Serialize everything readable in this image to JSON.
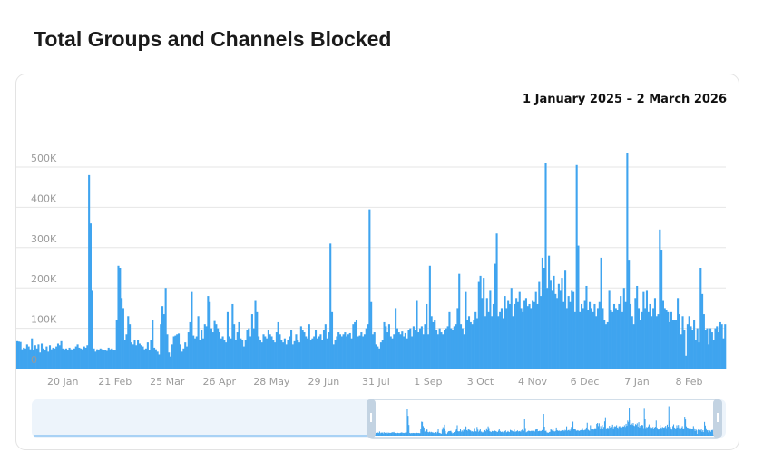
{
  "page": {
    "title": "Total Groups and Channels Blocked"
  },
  "chart_data": {
    "type": "bar",
    "title": "Total Groups and Channels Blocked",
    "date_range": "1 January 2025 – 2 March 2026",
    "start_date": "2024-12-23",
    "value_unit": "K",
    "color": "#3fa4ef",
    "ylim": [
      0,
      500
    ],
    "y_ticks": [
      {
        "v": 0,
        "label": "0"
      },
      {
        "v": 100,
        "label": "100K"
      },
      {
        "v": 200,
        "label": "200K"
      },
      {
        "v": 300,
        "label": "300K"
      },
      {
        "v": 400,
        "label": "400K"
      },
      {
        "v": 500,
        "label": "500K"
      }
    ],
    "x_ticks": [
      {
        "date": "2025-01-20",
        "label": "20 Jan"
      },
      {
        "date": "2025-02-21",
        "label": "21 Feb"
      },
      {
        "date": "2025-03-25",
        "label": "25 Mar"
      },
      {
        "date": "2025-04-26",
        "label": "26 Apr"
      },
      {
        "date": "2025-05-28",
        "label": "28 May"
      },
      {
        "date": "2025-06-29",
        "label": "29 Jun"
      },
      {
        "date": "2025-07-31",
        "label": "31 Jul"
      },
      {
        "date": "2025-09-01",
        "label": "1 Sep"
      },
      {
        "date": "2025-10-03",
        "label": "3 Oct"
      },
      {
        "date": "2025-11-04",
        "label": "4 Nov"
      },
      {
        "date": "2025-12-06",
        "label": "6 Dec"
      },
      {
        "date": "2026-01-07",
        "label": "7 Jan"
      },
      {
        "date": "2026-02-08",
        "label": "8 Feb"
      }
    ],
    "grid": true,
    "navigator": true,
    "values": [
      68,
      67,
      66,
      48,
      52,
      50,
      60,
      55,
      48,
      75,
      45,
      58,
      50,
      60,
      40,
      62,
      50,
      45,
      55,
      42,
      58,
      48,
      52,
      50,
      55,
      62,
      58,
      68,
      50,
      48,
      50,
      45,
      52,
      48,
      46,
      50,
      55,
      60,
      52,
      50,
      48,
      55,
      52,
      58,
      480,
      360,
      195,
      50,
      42,
      48,
      45,
      50,
      48,
      47,
      46,
      44,
      52,
      48,
      50,
      46,
      45,
      120,
      255,
      250,
      175,
      150,
      70,
      85,
      130,
      110,
      65,
      60,
      72,
      58,
      70,
      62,
      58,
      55,
      48,
      50,
      65,
      45,
      70,
      120,
      52,
      48,
      42,
      35,
      110,
      155,
      135,
      200,
      85,
      40,
      30,
      60,
      80,
      82,
      85,
      87,
      60,
      42,
      50,
      65,
      55,
      90,
      115,
      190,
      82,
      75,
      80,
      130,
      72,
      95,
      75,
      110,
      105,
      180,
      165,
      100,
      90,
      118,
      110,
      100,
      90,
      75,
      80,
      72,
      65,
      140,
      80,
      75,
      160,
      110,
      70,
      90,
      115,
      75,
      70,
      55,
      70,
      95,
      100,
      80,
      135,
      100,
      170,
      140,
      80,
      72,
      65,
      85,
      80,
      75,
      95,
      85,
      80,
      70,
      65,
      90,
      115,
      85,
      70,
      65,
      75,
      60,
      70,
      80,
      95,
      60,
      68,
      85,
      70,
      65,
      105,
      95,
      90,
      80,
      75,
      110,
      70,
      75,
      80,
      95,
      75,
      80,
      85,
      70,
      95,
      110,
      75,
      90,
      310,
      140,
      60,
      70,
      80,
      90,
      85,
      80,
      85,
      90,
      80,
      85,
      88,
      75,
      110,
      115,
      120,
      80,
      82,
      90,
      80,
      85,
      100,
      110,
      395,
      165,
      85,
      90,
      60,
      55,
      50,
      65,
      70,
      115,
      105,
      90,
      110,
      80,
      75,
      85,
      150,
      100,
      90,
      85,
      92,
      80,
      88,
      75,
      95,
      100,
      80,
      105,
      95,
      170,
      90,
      100,
      105,
      85,
      110,
      160,
      85,
      255,
      130,
      115,
      120,
      95,
      85,
      100,
      90,
      85,
      95,
      100,
      105,
      140,
      100,
      95,
      105,
      110,
      150,
      235,
      110,
      100,
      85,
      190,
      120,
      130,
      115,
      110,
      120,
      140,
      125,
      215,
      230,
      175,
      225,
      130,
      175,
      140,
      195,
      130,
      160,
      260,
      335,
      130,
      140,
      150,
      125,
      180,
      150,
      170,
      160,
      200,
      130,
      160,
      175,
      165,
      190,
      150,
      140,
      170,
      175,
      155,
      160,
      150,
      170,
      165,
      190,
      160,
      215,
      180,
      275,
      250,
      510,
      200,
      280,
      220,
      195,
      230,
      185,
      175,
      210,
      195,
      225,
      165,
      245,
      150,
      180,
      165,
      195,
      190,
      140,
      505,
      305,
      140,
      160,
      150,
      170,
      205,
      145,
      165,
      150,
      140,
      160,
      130,
      150,
      165,
      275,
      150,
      120,
      110,
      115,
      195,
      145,
      140,
      160,
      150,
      145,
      160,
      180,
      140,
      200,
      165,
      535,
      270,
      160,
      130,
      110,
      175,
      205,
      150,
      120,
      140,
      190,
      150,
      195,
      140,
      160,
      130,
      150,
      175,
      130,
      135,
      345,
      295,
      170,
      150,
      145,
      140,
      115,
      140,
      120,
      120,
      120,
      175,
      135,
      85,
      130,
      95,
      32,
      110,
      130,
      105,
      95,
      120,
      70,
      100,
      65,
      250,
      185,
      135,
      95,
      100,
      60,
      100,
      90,
      70,
      100,
      105,
      90,
      115,
      110,
      75,
      110
    ]
  }
}
